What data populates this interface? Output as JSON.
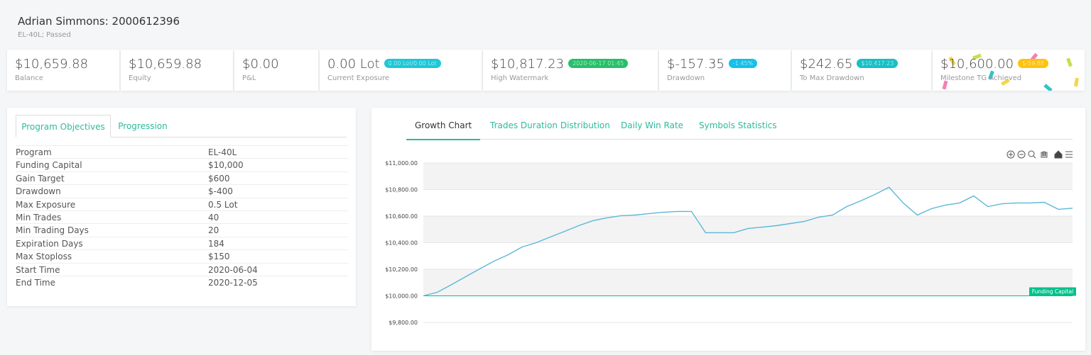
{
  "header": {
    "title": "Adrian Simmons: 2000612396",
    "subtitle": "EL-40L; Passed"
  },
  "stats": [
    {
      "value": "$10,659.88",
      "label": "Balance"
    },
    {
      "value": "$10,659.88",
      "label": "Equity"
    },
    {
      "value": "$0.00",
      "label": "P&L"
    },
    {
      "value": "0.00 Lot",
      "label": "Current Exposure",
      "badge": "0.00 Lot/0.00 Lot",
      "badge_color": "#1ec8d8"
    },
    {
      "value": "$10,817.23",
      "label": "High Watermark",
      "badge": "2020-06-17 01:45",
      "badge_color": "#26c06a"
    },
    {
      "value": "$-157.35",
      "label": "Drawdown",
      "badge": "-1.45%",
      "badge_color": "#16c0e6"
    },
    {
      "value": "$242.65",
      "label": "To Max Drawdown",
      "badge": "$10,417.23",
      "badge_color": "#19bfc6"
    },
    {
      "value": "$10,600.00",
      "label": "Milestone TG Achieved",
      "badge": "$-59.88",
      "badge_color": "#ffc20e"
    }
  ],
  "objectives": {
    "tabs": [
      "Program Objectives",
      "Progression"
    ],
    "rows": [
      [
        "Program",
        "EL-40L"
      ],
      [
        "Funding Capital",
        "$10,000"
      ],
      [
        "Gain Target",
        "$600"
      ],
      [
        "Drawdown",
        "$-400"
      ],
      [
        "Max Exposure",
        "0.5 Lot"
      ],
      [
        "Min Trades",
        "40"
      ],
      [
        "Min Trading Days",
        "20"
      ],
      [
        "Expiration Days",
        "184"
      ],
      [
        "Max Stoploss",
        "$150"
      ],
      [
        "Start Time",
        "2020-06-04"
      ],
      [
        "End Time",
        "2020-12-05"
      ]
    ]
  },
  "chart_tabs": [
    "Growth Chart",
    "Trades Duration Distribution",
    "Daily Win Rate",
    "Symbols Statistics"
  ],
  "chart_data": {
    "type": "line",
    "color": "#5bb8d8",
    "values": [
      10000,
      10027,
      10085,
      10144,
      10203,
      10261,
      10309,
      10368,
      10400,
      10443,
      10485,
      10528,
      10565,
      10587,
      10603,
      10608,
      10619,
      10629,
      10635,
      10635,
      10475,
      10475,
      10475,
      10507,
      10517,
      10528,
      10544,
      10560,
      10592,
      10608,
      10672,
      10715,
      10763,
      10817.23,
      10699,
      10608,
      10656,
      10683,
      10699,
      10752,
      10672,
      10693,
      10699,
      10699,
      10704,
      10651,
      10659.88
    ],
    "ylim": [
      9800,
      11000
    ],
    "yticks": [
      {
        "value": 9800,
        "label": "$9,800.00"
      },
      {
        "value": 10000,
        "label": "$10,000.00"
      },
      {
        "value": 10200,
        "label": "$10,200.00"
      },
      {
        "value": 10400,
        "label": "$10,400.00"
      },
      {
        "value": 10600,
        "label": "$10,600.00"
      },
      {
        "value": 10800,
        "label": "$10,800.00"
      },
      {
        "value": 11000,
        "label": "$11,000.00"
      }
    ],
    "grid": true,
    "annotations": [
      {
        "y": 10000,
        "label": "Funding Capital",
        "color": "#00c28a"
      }
    ]
  }
}
